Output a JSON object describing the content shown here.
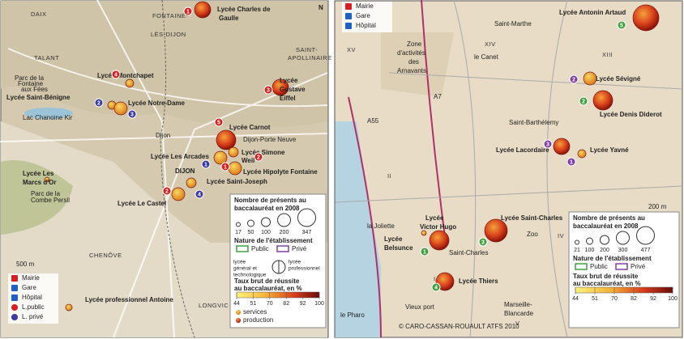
{
  "left_map": {
    "labels": [
      "Lycée Charles de",
      "Gaulle",
      "DAIX",
      "FONTAINE-",
      "LÈS-DIJON",
      "TALANT",
      "SAINT-",
      "APOLLINAIRE",
      "Lycée Montchapet",
      "Parc de la",
      "Fontaine",
      "aux Fées",
      "Lycée Saint-Bénigne",
      "Lycée Notre-Dame",
      "Lycée",
      "Gustave",
      "Eiffel",
      "Lac Chanoine Kir",
      "Lycée Carnot",
      "Dijon",
      "Dijon-Porte Neuve",
      "Lycée Les Arcades",
      "Lycée Simone",
      "Weil",
      "DIJON",
      "Lycée Hipolyte Fontaine",
      "Lycée Les",
      "Marcs d'Or",
      "Lycée Saint-Joseph",
      "Parc de la",
      "Combe Persil",
      "Lycée Le Castel",
      "CHENÔVE",
      "LONGVIC",
      "Lycée professionnel Antoine",
      "N",
      "500 m"
    ],
    "badges": [
      "1",
      "4",
      "2",
      "3",
      "3",
      "5",
      "1",
      "2",
      "1",
      "2",
      "4"
    ],
    "symbols": [
      "Mairie",
      "Gare",
      "Hôpital",
      "L.public",
      "L. privé"
    ],
    "legend": {
      "size_title": [
        "Nombre de présents au",
        "baccalauréat en 2008"
      ],
      "sizes": [
        17,
        50,
        100,
        200,
        347
      ],
      "nature_title": "Nature de l'établissement",
      "public": "Public",
      "private": "Privé",
      "general": [
        "lycée",
        "général et",
        "technologique"
      ],
      "professional": [
        "lycée",
        "professionnel"
      ],
      "rate_title": [
        "Taux brut de réussite",
        "au baccalauréat, en %"
      ],
      "rate_ticks": [
        44,
        51,
        70,
        82,
        92,
        100
      ],
      "services": "services",
      "production": "production"
    }
  },
  "right_map": {
    "labels": [
      "Saint-Marthe",
      "Lycée Antonin Artaud",
      "XV",
      "XIV",
      "XIII",
      "Zone",
      "d'activités",
      "des",
      "Arnavants",
      "le Canet",
      "Lycée Sévigné",
      "Lycée Denis Diderot",
      "Saint-Barthélemy",
      "Lycée Lacordaire",
      "Lycée Yavné",
      "II",
      "A55",
      "A7",
      "200 m",
      "Lycée",
      "Victor Hugo",
      "la Joliette",
      "Lycée",
      "Belsunce",
      "Lycée Saint-Charles",
      "Saint-Charles",
      "Zoo",
      "IV",
      "I",
      "Lycée Thiers",
      "Vieux port",
      "Marseille-",
      "Blancarde",
      "V",
      "le Pharo",
      "© CARO-CASSAN-ROUAULT ATFS 2010"
    ],
    "badges": [
      "5",
      "2",
      "2",
      "3",
      "1",
      "1",
      "3",
      "4"
    ],
    "symbols": [
      "Mairie",
      "Gare",
      "Hôpital"
    ],
    "legend": {
      "size_title": [
        "Nombre de présents au",
        "baccalauréat en 2008"
      ],
      "sizes": [
        21,
        100,
        200,
        300,
        477
      ],
      "nature_title": "Nature de l'établissement",
      "public": "Public",
      "private": "Privé",
      "rate_title": [
        "Taux brut de réussite",
        "au baccalauréat, en %"
      ],
      "rate_ticks": [
        44,
        51,
        70,
        82,
        92,
        100
      ]
    }
  }
}
